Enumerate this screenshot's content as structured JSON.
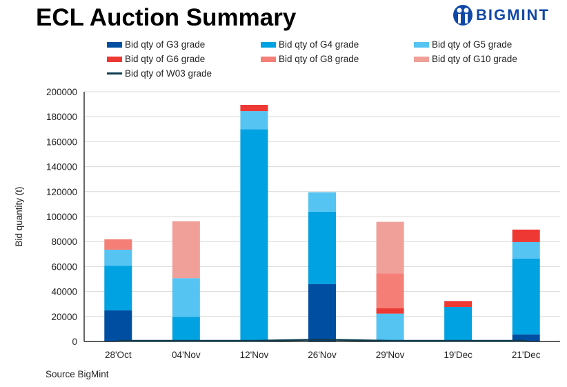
{
  "logo": {
    "text": "BIGMINT"
  },
  "source": "Source BigMint",
  "chart_data": {
    "type": "bar",
    "stacked": true,
    "title": "ECL Auction Summary",
    "xlabel": "",
    "ylabel": "Bid quantity (t)",
    "ylim": [
      0,
      200000
    ],
    "yticks": [
      "0",
      "20000",
      "40000",
      "60000",
      "80000",
      "100000",
      "120000",
      "140000",
      "160000",
      "180000",
      "200000"
    ],
    "grid": true,
    "legend": "top",
    "categories": [
      "28'Oct",
      "04'Nov",
      "12'Nov",
      "26'Nov",
      "29'Nov",
      "19'Dec",
      "21'Dec"
    ],
    "series": [
      {
        "name": "Bid qty of G3 grade",
        "color": "#004ea2",
        "kind": "bar",
        "values": [
          25000,
          0,
          0,
          46000,
          0,
          0,
          5700
        ]
      },
      {
        "name": "Bid qty of G4 grade",
        "color": "#00a2e1",
        "kind": "bar",
        "values": [
          35500,
          19600,
          170000,
          58000,
          0,
          27600,
          60600
        ]
      },
      {
        "name": "Bid qty of G5 grade",
        "color": "#55c4f2",
        "kind": "bar",
        "values": [
          13000,
          31100,
          14500,
          15500,
          22300,
          0,
          13300
        ]
      },
      {
        "name": "Bid qty of G6 grade",
        "color": "#ee3833",
        "kind": "bar",
        "values": [
          0,
          0,
          5000,
          0,
          4400,
          4800,
          10000
        ]
      },
      {
        "name": "Bid qty of G8 grade",
        "color": "#f57f77",
        "kind": "bar",
        "values": [
          8300,
          0,
          0,
          0,
          27900,
          0,
          0
        ]
      },
      {
        "name": "Bid qty of G10 grade",
        "color": "#f09f99",
        "kind": "bar",
        "values": [
          0,
          45600,
          0,
          0,
          41200,
          0,
          0
        ]
      },
      {
        "name": "Bid qty of W03 grade",
        "color": "#0e3b4f",
        "kind": "line",
        "values": [
          0,
          0,
          0,
          1000,
          0,
          0,
          0
        ]
      }
    ]
  }
}
